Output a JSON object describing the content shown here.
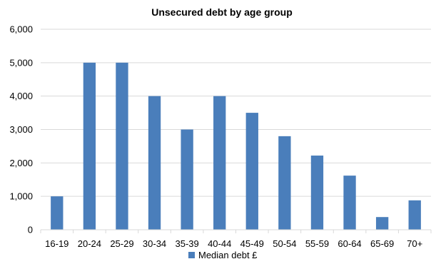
{
  "chart_data": {
    "type": "bar",
    "title": "Unsecured debt by age group",
    "categories": [
      "16-19",
      "20-24",
      "25-29",
      "30-34",
      "35-39",
      "40-44",
      "45-49",
      "50-54",
      "55-59",
      "60-64",
      "65-69",
      "70+"
    ],
    "series": [
      {
        "name": "Median debt £",
        "values": [
          1000,
          5000,
          5000,
          4000,
          3000,
          4000,
          3500,
          2800,
          2220,
          1620,
          380,
          880
        ],
        "color": "#4a7ebb"
      }
    ],
    "ylim": [
      0,
      6000
    ],
    "yticks": [
      "0",
      "1,000",
      "2,000",
      "3,000",
      "4,000",
      "5,000",
      "6,000"
    ],
    "ytick_values": [
      0,
      1000,
      2000,
      3000,
      4000,
      5000,
      6000
    ],
    "grid": true,
    "grid_color": "#d9d9d9",
    "legend_position": "bottom"
  }
}
